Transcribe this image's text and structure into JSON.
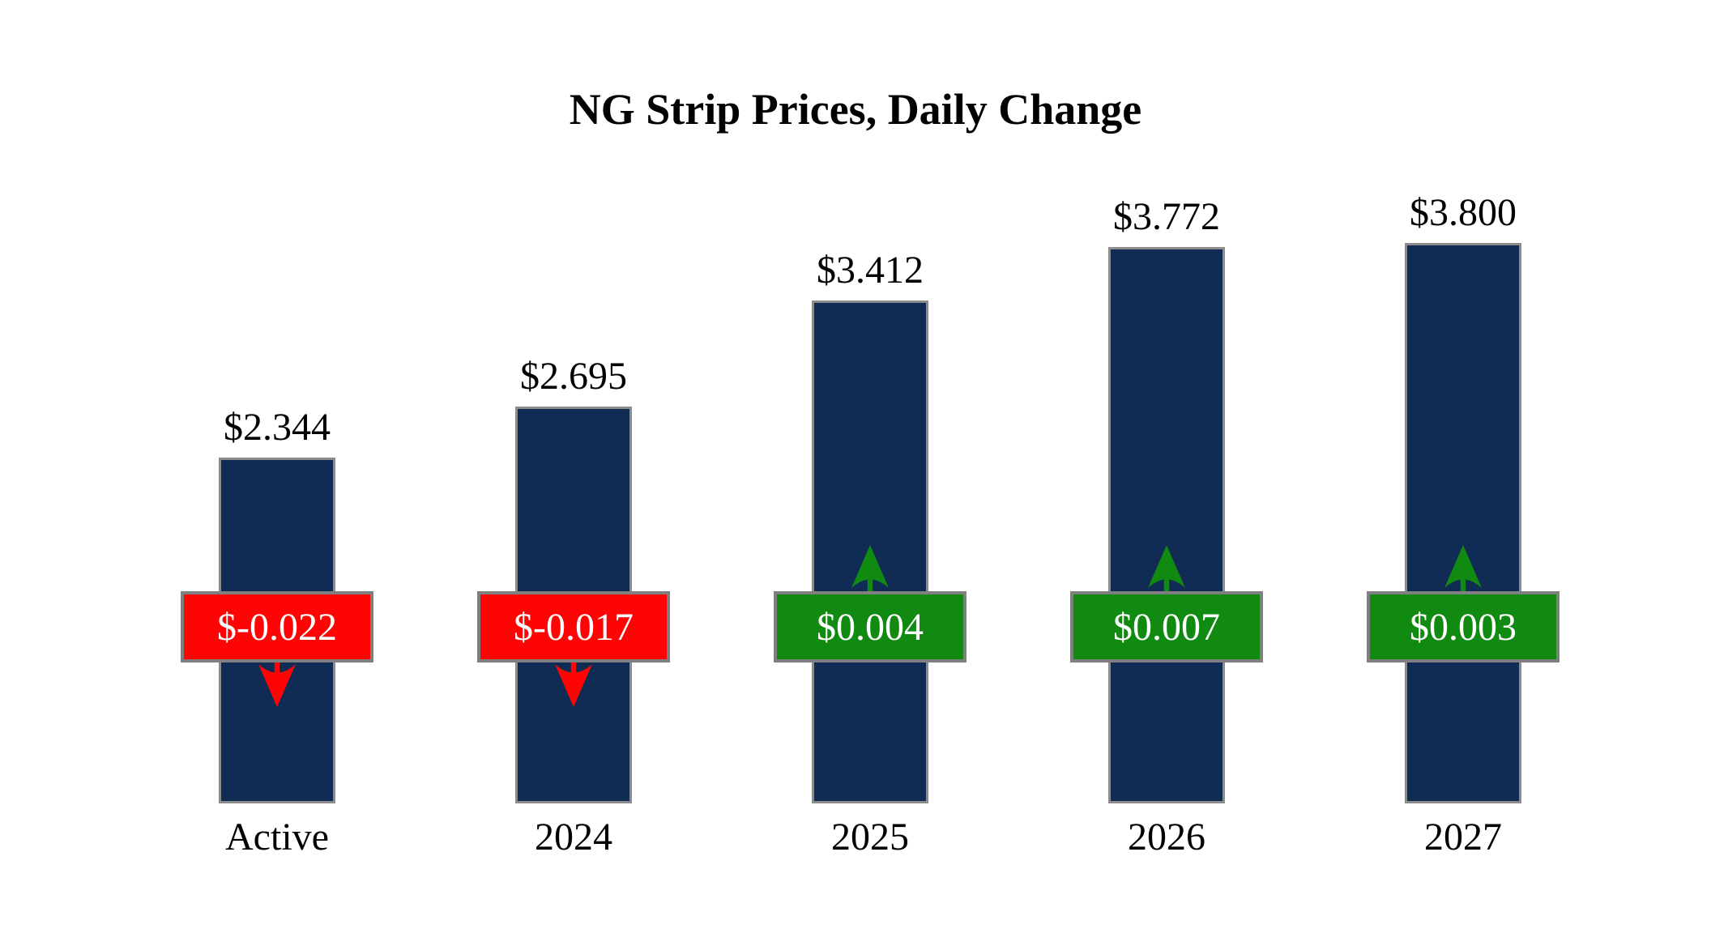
{
  "chart_data": {
    "type": "bar",
    "title": "NG Strip Prices, Daily Change",
    "xlabel": "",
    "ylabel": "",
    "categories": [
      "Active",
      "2024",
      "2025",
      "2026",
      "2027"
    ],
    "bars": [
      {
        "category": "Active",
        "price": 2.344,
        "price_label": "$2.344",
        "change": -0.022,
        "change_label": "$-0.022",
        "direction": "down"
      },
      {
        "category": "2024",
        "price": 2.695,
        "price_label": "$2.695",
        "change": -0.017,
        "change_label": "$-0.017",
        "direction": "down"
      },
      {
        "category": "2025",
        "price": 3.412,
        "price_label": "$3.412",
        "change": 0.004,
        "change_label": "$0.004",
        "direction": "up"
      },
      {
        "category": "2026",
        "price": 3.772,
        "price_label": "$3.772",
        "change": 0.007,
        "change_label": "$0.007",
        "direction": "up"
      },
      {
        "category": "2027",
        "price": 3.8,
        "price_label": "$3.800",
        "change": 0.003,
        "change_label": "$0.003",
        "direction": "up"
      }
    ],
    "colors": {
      "bar_fill": "#112c54",
      "bar_border": "#8c8c8c",
      "badge_border": "#7f7f7f",
      "negative": "#fe0505",
      "positive": "#118a11",
      "badge_text": "#ffffff",
      "label_text": "#000000",
      "background": "#ffffff"
    },
    "legend": "none",
    "grid": "off",
    "y_axis_visible": false
  }
}
